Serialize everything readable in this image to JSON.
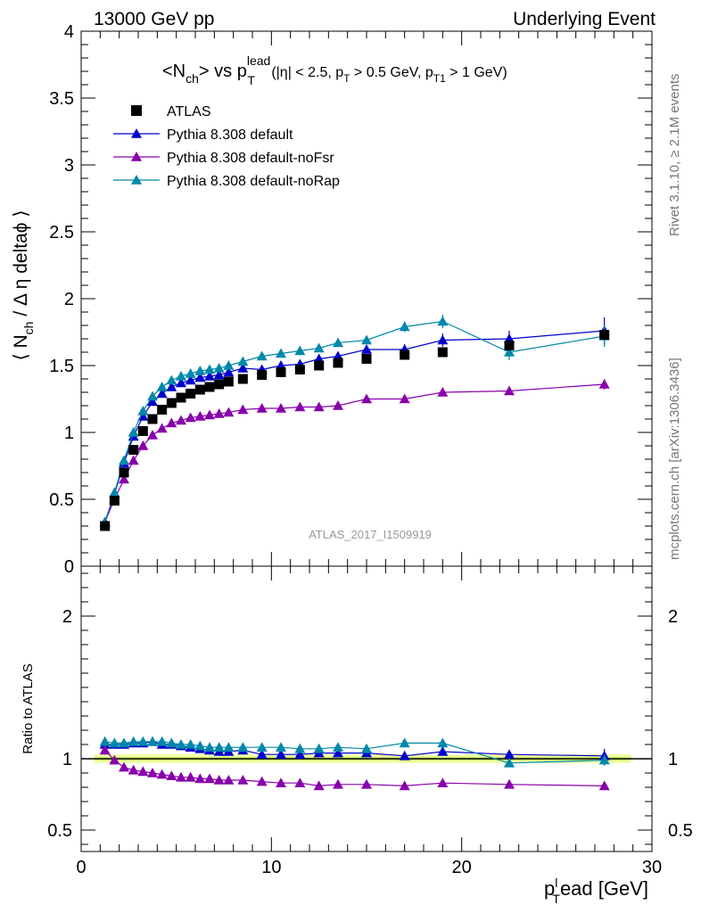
{
  "header": {
    "left": "13000 GeV pp",
    "right": "Underlying Event"
  },
  "side": {
    "rivet": "Rivet 3.1.10, ≥ 2.1M events",
    "mcplots": "mcplots.cern.ch [arXiv:1306.3436]"
  },
  "title": {
    "main_a": "<N",
    "main_sub_a": "ch",
    "main_b": "> vs p",
    "main_sup": "lead",
    "main_sub_b": "T",
    "cut_a": " (|η| < 2.5, p",
    "cut_sub_a": "T",
    "cut_b": " > 0.5 GeV, p",
    "cut_sub_b": "T1",
    "cut_c": " > 1 GeV)"
  },
  "watermark": "ATLAS_2017_I1509919",
  "axes": {
    "ylabel_a": "⟨ N",
    "ylabel_sub": "ch",
    "ylabel_b": " / Δ η deltaϕ ⟩",
    "ratio_ylabel": "Ratio to ATLAS",
    "xlabel_a": "p",
    "xlabel_sup": "l",
    "xlabel_sub": "T",
    "xlabel_b": "ead [GeV]"
  },
  "chart_data": {
    "type": "scatter",
    "x": [
      1.25,
      1.75,
      2.25,
      2.75,
      3.25,
      3.75,
      4.25,
      4.75,
      5.25,
      5.75,
      6.25,
      6.75,
      7.25,
      7.75,
      8.5,
      9.5,
      10.5,
      11.5,
      12.5,
      13.5,
      15,
      17,
      19,
      22.5,
      27.5
    ],
    "xlim": [
      0,
      30
    ],
    "ylim": [
      0,
      4
    ],
    "ratio_ylim": [
      0.35,
      2.35
    ],
    "x_ticks": [
      0,
      10,
      20,
      30
    ],
    "y_ticks": [
      0,
      0.5,
      1,
      1.5,
      2,
      2.5,
      3,
      3.5,
      4
    ],
    "ratio_ticks": [
      0.5,
      1,
      2
    ],
    "series": [
      {
        "name": "ATLAS",
        "color": "#000000",
        "marker": "square",
        "values": [
          0.3,
          0.49,
          0.7,
          0.87,
          1.01,
          1.1,
          1.17,
          1.22,
          1.26,
          1.29,
          1.32,
          1.34,
          1.36,
          1.38,
          1.4,
          1.43,
          1.45,
          1.47,
          1.5,
          1.52,
          1.55,
          1.58,
          1.6,
          1.65,
          1.73
        ],
        "errors": [
          0.01,
          0.01,
          0.01,
          0.01,
          0.01,
          0.01,
          0.01,
          0.01,
          0.01,
          0.01,
          0.01,
          0.01,
          0.01,
          0.01,
          0.01,
          0.01,
          0.01,
          0.01,
          0.01,
          0.01,
          0.01,
          0.01,
          0.01,
          0.02,
          0.03
        ],
        "ratio": [
          1,
          1,
          1,
          1,
          1,
          1,
          1,
          1,
          1,
          1,
          1,
          1,
          1,
          1,
          1,
          1,
          1,
          1,
          1,
          1,
          1,
          1,
          1,
          1,
          1
        ]
      },
      {
        "name": "Pythia 8.308 default",
        "color": "#0000cc",
        "marker": "triangle",
        "values": [
          0.33,
          0.54,
          0.77,
          0.97,
          1.12,
          1.23,
          1.29,
          1.34,
          1.37,
          1.39,
          1.41,
          1.42,
          1.43,
          1.45,
          1.48,
          1.47,
          1.5,
          1.51,
          1.55,
          1.57,
          1.62,
          1.62,
          1.69,
          1.7,
          1.76
        ],
        "errors": [
          0.01,
          0.01,
          0.01,
          0.01,
          0.01,
          0.01,
          0.01,
          0.01,
          0.01,
          0.01,
          0.01,
          0.01,
          0.01,
          0.01,
          0.02,
          0.02,
          0.02,
          0.02,
          0.02,
          0.03,
          0.03,
          0.04,
          0.05,
          0.06,
          0.1
        ],
        "ratio": [
          1.1,
          1.1,
          1.1,
          1.11,
          1.11,
          1.12,
          1.1,
          1.1,
          1.09,
          1.08,
          1.07,
          1.06,
          1.05,
          1.05,
          1.06,
          1.03,
          1.03,
          1.03,
          1.04,
          1.04,
          1.04,
          1.02,
          1.05,
          1.03,
          1.02
        ],
        "ratio_errors": [
          0.01,
          0.01,
          0.01,
          0.01,
          0.01,
          0.01,
          0.01,
          0.01,
          0.01,
          0.01,
          0.01,
          0.01,
          0.01,
          0.01,
          0.01,
          0.01,
          0.01,
          0.01,
          0.01,
          0.02,
          0.02,
          0.02,
          0.02,
          0.03,
          0.05
        ]
      },
      {
        "name": "Pythia 8.308 default-noFsr",
        "color": "#8800aa",
        "marker": "triangle",
        "values": [
          0.33,
          0.5,
          0.65,
          0.79,
          0.9,
          0.98,
          1.03,
          1.07,
          1.09,
          1.11,
          1.12,
          1.13,
          1.14,
          1.15,
          1.17,
          1.18,
          1.18,
          1.19,
          1.19,
          1.2,
          1.25,
          1.25,
          1.3,
          1.31,
          1.36
        ],
        "errors": [
          0.01,
          0.01,
          0.01,
          0.01,
          0.01,
          0.01,
          0.01,
          0.01,
          0.01,
          0.01,
          0.01,
          0.01,
          0.01,
          0.01,
          0.01,
          0.01,
          0.01,
          0.01,
          0.01,
          0.01,
          0.02,
          0.02,
          0.03,
          0.03,
          0.04
        ],
        "ratio": [
          1.06,
          0.99,
          0.94,
          0.92,
          0.91,
          0.9,
          0.89,
          0.88,
          0.87,
          0.87,
          0.86,
          0.86,
          0.85,
          0.85,
          0.85,
          0.84,
          0.83,
          0.83,
          0.81,
          0.82,
          0.82,
          0.81,
          0.83,
          0.82,
          0.81
        ],
        "ratio_errors": [
          0.01,
          0.01,
          0.01,
          0.01,
          0.01,
          0.01,
          0.01,
          0.01,
          0.01,
          0.01,
          0.01,
          0.01,
          0.01,
          0.01,
          0.01,
          0.01,
          0.01,
          0.01,
          0.01,
          0.01,
          0.01,
          0.01,
          0.01,
          0.01,
          0.02
        ]
      },
      {
        "name": "Pythia 8.308 default-noRap",
        "color": "#0088aa",
        "marker": "triangle",
        "values": [
          0.33,
          0.55,
          0.79,
          1.0,
          1.16,
          1.27,
          1.34,
          1.39,
          1.42,
          1.44,
          1.46,
          1.47,
          1.48,
          1.5,
          1.53,
          1.57,
          1.59,
          1.61,
          1.63,
          1.67,
          1.69,
          1.79,
          1.83,
          1.6,
          1.72
        ],
        "errors": [
          0.01,
          0.01,
          0.01,
          0.01,
          0.01,
          0.01,
          0.01,
          0.01,
          0.01,
          0.01,
          0.01,
          0.01,
          0.01,
          0.01,
          0.02,
          0.02,
          0.02,
          0.02,
          0.02,
          0.03,
          0.03,
          0.04,
          0.05,
          0.06,
          0.08
        ],
        "ratio": [
          1.12,
          1.11,
          1.11,
          1.12,
          1.12,
          1.12,
          1.12,
          1.11,
          1.1,
          1.1,
          1.09,
          1.08,
          1.08,
          1.08,
          1.08,
          1.08,
          1.08,
          1.07,
          1.07,
          1.08,
          1.07,
          1.11,
          1.11,
          0.97,
          0.99
        ],
        "ratio_errors": [
          0.01,
          0.01,
          0.01,
          0.01,
          0.01,
          0.01,
          0.01,
          0.01,
          0.01,
          0.01,
          0.01,
          0.01,
          0.01,
          0.01,
          0.01,
          0.01,
          0.01,
          0.01,
          0.01,
          0.02,
          0.02,
          0.02,
          0.03,
          0.03,
          0.04
        ]
      }
    ]
  }
}
